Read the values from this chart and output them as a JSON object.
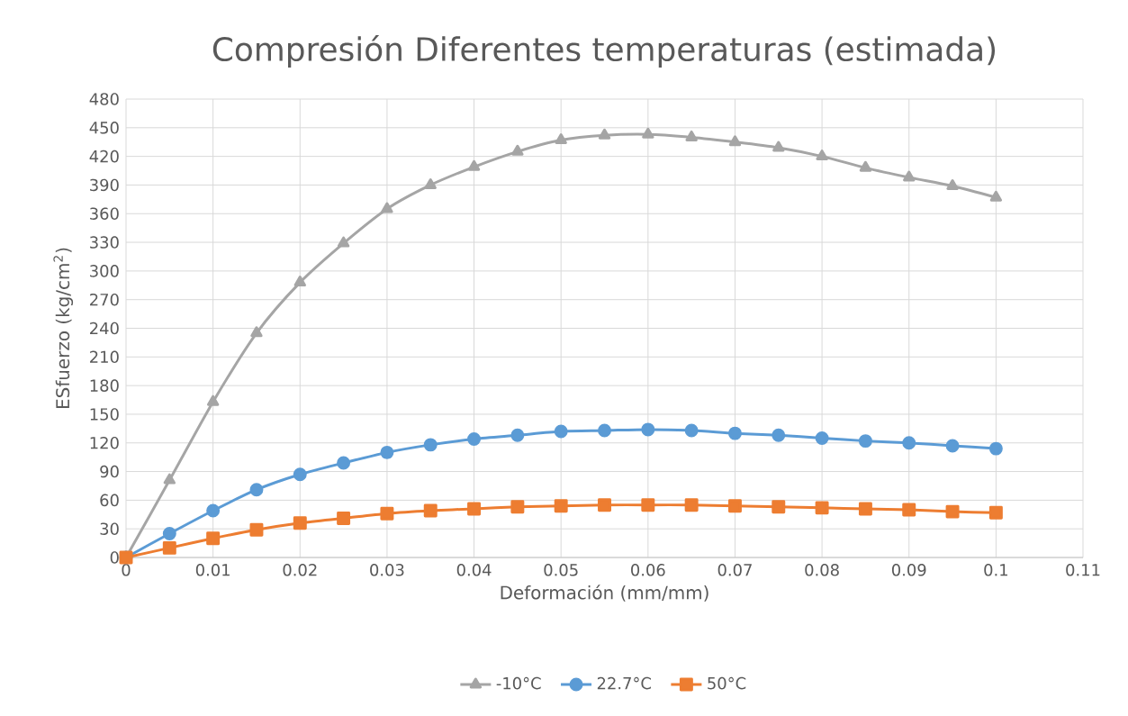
{
  "chart_data": {
    "type": "line",
    "title": "Compresión Diferentes temperaturas (estimada)",
    "xlabel": "Deformación (mm/mm)",
    "ylabel": "ESfuerzo (kg/cm$^{2}$)",
    "x": [
      0,
      0.005,
      0.01,
      0.015,
      0.02,
      0.025,
      0.03,
      0.035,
      0.04,
      0.045,
      0.05,
      0.055,
      0.06,
      0.065,
      0.07,
      0.075,
      0.08,
      0.085,
      0.09,
      0.095,
      0.1
    ],
    "series": [
      {
        "name": "-10°C",
        "color": "#a5a5a5",
        "marker": "triangle",
        "values": [
          0,
          81,
          163,
          235,
          288,
          329,
          365,
          390,
          409,
          425,
          437,
          442,
          443,
          440,
          435,
          429,
          420,
          408,
          398,
          389,
          377
        ]
      },
      {
        "name": "22.7°C",
        "color": "#5b9bd5",
        "marker": "circle",
        "values": [
          0,
          25,
          49,
          71,
          87,
          99,
          110,
          118,
          124,
          128,
          132,
          133,
          134,
          133,
          130,
          128,
          125,
          122,
          120,
          117,
          114
        ]
      },
      {
        "name": "50°C",
        "color": "#ed7d31",
        "marker": "square",
        "values": [
          0,
          10,
          20,
          29,
          36,
          41,
          46,
          49,
          51,
          53,
          54,
          55,
          55,
          55,
          54,
          53,
          52,
          51,
          50,
          48,
          47
        ]
      }
    ],
    "xlim": [
      0,
      0.11
    ],
    "xticks": [
      0,
      0.01,
      0.02,
      0.03,
      0.04,
      0.05,
      0.06,
      0.07,
      0.08,
      0.09,
      0.1,
      0.11
    ],
    "ylim": [
      0,
      480
    ],
    "yticks": [
      0,
      30,
      60,
      90,
      120,
      150,
      180,
      210,
      240,
      270,
      300,
      330,
      360,
      390,
      420,
      450,
      480
    ],
    "grid": true,
    "legend": "bottom",
    "line_style": "solid"
  }
}
